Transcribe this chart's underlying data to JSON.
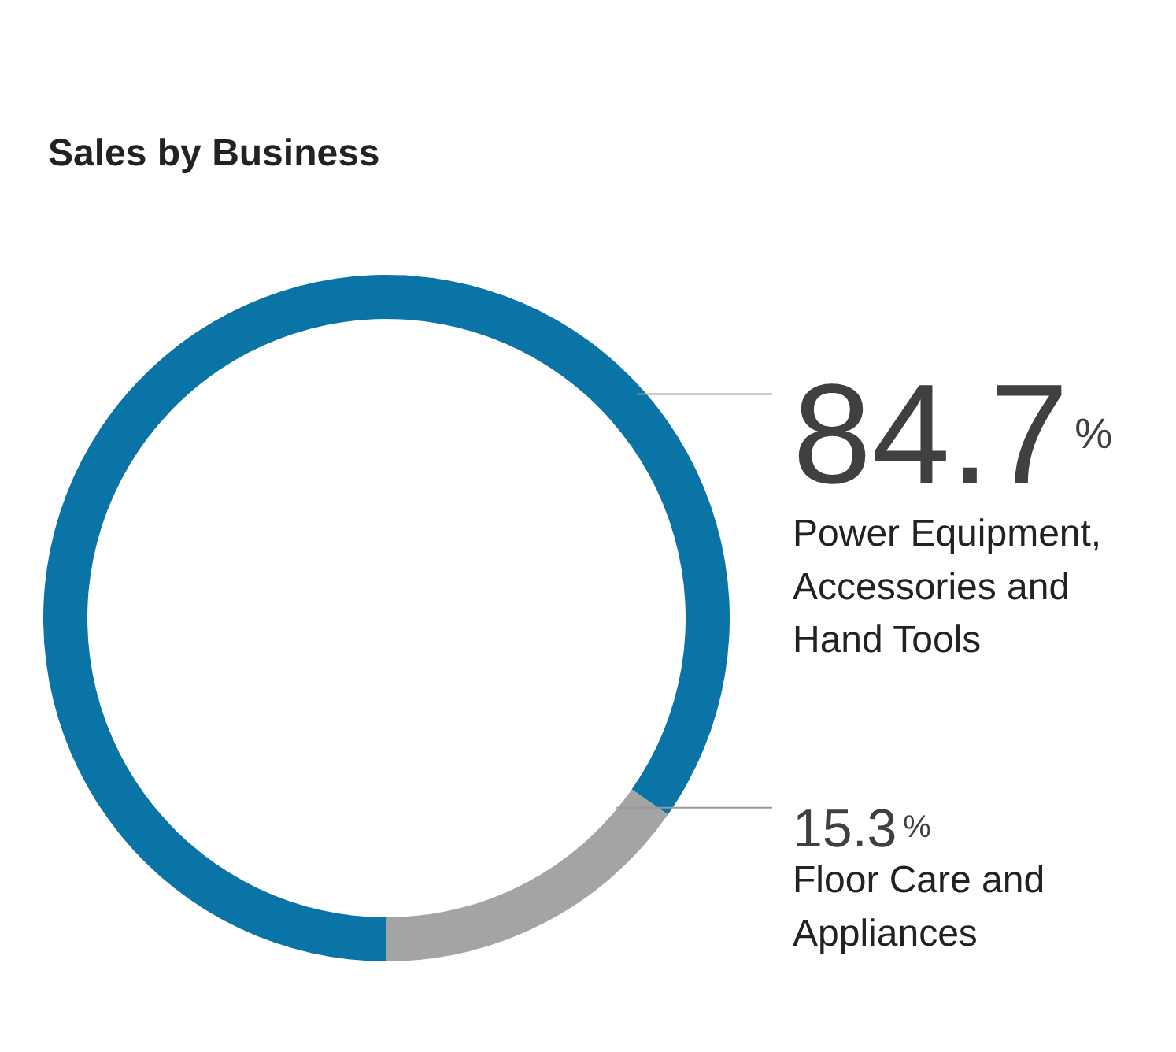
{
  "chart_data": {
    "type": "donut",
    "title": "Sales by Business",
    "categories": [
      "Power Equipment, Accessories and Hand Tools",
      "Floor Care and Appliances"
    ],
    "values": [
      84.7,
      15.3
    ],
    "colors": [
      "#0a74a6",
      "#a3a5a4"
    ],
    "value_labels": [
      "84.7%",
      "15.3%"
    ]
  }
}
